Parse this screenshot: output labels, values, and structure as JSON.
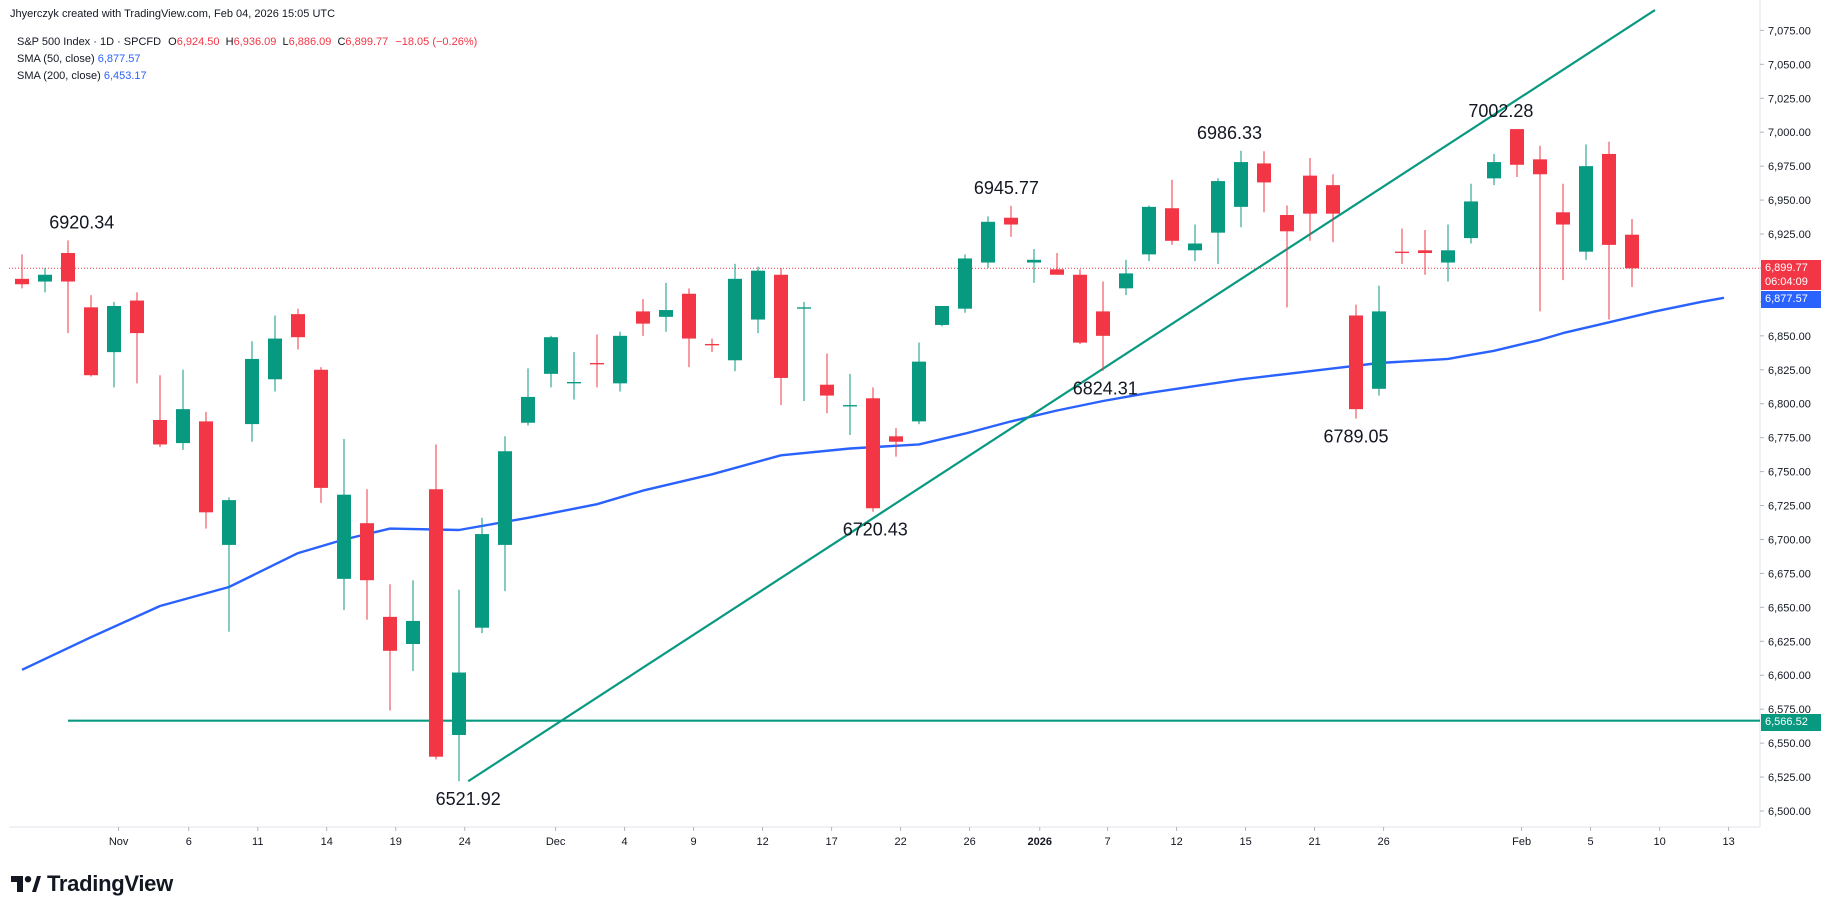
{
  "header": {
    "attribution": "Jhyerczyk created with TradingView.com, Feb 04, 2026 15:05 UTC"
  },
  "legend": {
    "symbol": "S&P 500 Index · 1D · SPCFD",
    "ohlc": [
      {
        "k": "O",
        "v": "6,924.50"
      },
      {
        "k": "H",
        "v": "6,936.09"
      },
      {
        "k": "L",
        "v": "6,886.09"
      },
      {
        "k": "C",
        "v": "6,899.77"
      }
    ],
    "change": "−18.05 (−0.26%)",
    "sma50_label": "SMA (50, close)",
    "sma50_value": "6,877.57",
    "sma200_label": "SMA (200, close)",
    "sma200_value": "6,453.17"
  },
  "price_tags": {
    "last_price": "6,899.77",
    "countdown": "06:04:09",
    "sma_value": "6,877.57",
    "support_level": "6,566.52"
  },
  "brand": {
    "name": "TradingView"
  },
  "colors": {
    "up": "#089981",
    "down": "#f23645",
    "sma": "#2962ff",
    "trendline": "#089981",
    "last_price_line": "#f23645"
  },
  "chart_data": {
    "type": "candlestick",
    "title": "S&P 500 Index · 1D · SPCFD",
    "y_axis": {
      "ylim": [
        6487.5,
        7087.5
      ],
      "ticks": [
        "6,500.00",
        "6,525.00",
        "6,550.00",
        "6,575.00",
        "6,600.00",
        "6,625.00",
        "6,650.00",
        "6,675.00",
        "6,700.00",
        "6,725.00",
        "6,750.00",
        "6,775.00",
        "6,800.00",
        "6,825.00",
        "6,850.00",
        "6,875.00",
        "6,900.00",
        "6,925.00",
        "6,950.00",
        "6,975.00",
        "7,000.00",
        "7,025.00",
        "7,050.00",
        "7,075.00"
      ],
      "position": "right"
    },
    "x_axis": {
      "ticks": [
        {
          "label": "Nov",
          "bar": 4.2,
          "bold": false
        },
        {
          "label": "6",
          "bar": 7.25,
          "bold": false
        },
        {
          "label": "11",
          "bar": 10.25,
          "bold": false
        },
        {
          "label": "14",
          "bar": 13.25,
          "bold": false
        },
        {
          "label": "19",
          "bar": 16.25,
          "bold": false
        },
        {
          "label": "24",
          "bar": 19.25,
          "bold": false
        },
        {
          "label": "Dec",
          "bar": 23.2,
          "bold": false
        },
        {
          "label": "4",
          "bar": 26.2,
          "bold": false
        },
        {
          "label": "9",
          "bar": 29.2,
          "bold": false
        },
        {
          "label": "12",
          "bar": 32.2,
          "bold": false
        },
        {
          "label": "17",
          "bar": 35.2,
          "bold": false
        },
        {
          "label": "22",
          "bar": 38.2,
          "bold": false
        },
        {
          "label": "26",
          "bar": 41.2,
          "bold": false
        },
        {
          "label": "2026",
          "bar": 44.25,
          "bold": true
        },
        {
          "label": "7",
          "bar": 47.2,
          "bold": false
        },
        {
          "label": "12",
          "bar": 50.2,
          "bold": false
        },
        {
          "label": "15",
          "bar": 53.2,
          "bold": false
        },
        {
          "label": "21",
          "bar": 56.2,
          "bold": false
        },
        {
          "label": "26",
          "bar": 59.2,
          "bold": false
        },
        {
          "label": "Feb",
          "bar": 65.2,
          "bold": false
        },
        {
          "label": "5",
          "bar": 68.2,
          "bold": false
        },
        {
          "label": "10",
          "bar": 71.2,
          "bold": false
        },
        {
          "label": "13",
          "bar": 74.2,
          "bold": false
        }
      ]
    },
    "candles": [
      {
        "o": 6892,
        "h": 6910,
        "l": 6885,
        "c": 6888
      },
      {
        "o": 6890,
        "h": 6900,
        "l": 6882,
        "c": 6895
      },
      {
        "o": 6911,
        "h": 6920.34,
        "l": 6852,
        "c": 6890
      },
      {
        "o": 6871,
        "h": 6880,
        "l": 6820,
        "c": 6821
      },
      {
        "o": 6838,
        "h": 6875,
        "l": 6812,
        "c": 6872
      },
      {
        "o": 6876,
        "h": 6882,
        "l": 6815,
        "c": 6852
      },
      {
        "o": 6788,
        "h": 6821,
        "l": 6768,
        "c": 6770
      },
      {
        "o": 6771,
        "h": 6825,
        "l": 6766,
        "c": 6796
      },
      {
        "o": 6787,
        "h": 6794,
        "l": 6708,
        "c": 6720
      },
      {
        "o": 6696,
        "h": 6731,
        "l": 6632,
        "c": 6729
      },
      {
        "o": 6785,
        "h": 6846,
        "l": 6772,
        "c": 6833
      },
      {
        "o": 6818,
        "h": 6865,
        "l": 6809,
        "c": 6848
      },
      {
        "o": 6866,
        "h": 6870,
        "l": 6840,
        "c": 6849
      },
      {
        "o": 6825,
        "h": 6827,
        "l": 6727,
        "c": 6738
      },
      {
        "o": 6671,
        "h": 6774,
        "l": 6648,
        "c": 6733
      },
      {
        "o": 6712,
        "h": 6737,
        "l": 6641,
        "c": 6670
      },
      {
        "o": 6643,
        "h": 6667,
        "l": 6574,
        "c": 6618
      },
      {
        "o": 6623,
        "h": 6670,
        "l": 6603,
        "c": 6640
      },
      {
        "o": 6737,
        "h": 6770,
        "l": 6538,
        "c": 6540
      },
      {
        "o": 6556,
        "h": 6663,
        "l": 6521.92,
        "c": 6602
      },
      {
        "o": 6635,
        "h": 6716,
        "l": 6631,
        "c": 6704
      },
      {
        "o": 6696,
        "h": 6776,
        "l": 6662,
        "c": 6765
      },
      {
        "o": 6786,
        "h": 6826,
        "l": 6784,
        "c": 6805
      },
      {
        "o": 6822,
        "h": 6850,
        "l": 6812,
        "c": 6849
      },
      {
        "o": 6815,
        "h": 6838,
        "l": 6803,
        "c": 6816
      },
      {
        "o": 6830,
        "h": 6851,
        "l": 6812,
        "c": 6829
      },
      {
        "o": 6815,
        "h": 6853,
        "l": 6809,
        "c": 6850
      },
      {
        "o": 6868,
        "h": 6877,
        "l": 6850,
        "c": 6859
      },
      {
        "o": 6864,
        "h": 6889,
        "l": 6853,
        "c": 6869
      },
      {
        "o": 6881,
        "h": 6885,
        "l": 6827,
        "c": 6848
      },
      {
        "o": 6844,
        "h": 6848,
        "l": 6838,
        "c": 6843
      },
      {
        "o": 6832,
        "h": 6903,
        "l": 6824,
        "c": 6892
      },
      {
        "o": 6862,
        "h": 6901,
        "l": 6852,
        "c": 6898
      },
      {
        "o": 6895,
        "h": 6900,
        "l": 6799,
        "c": 6819
      },
      {
        "o": 6870,
        "h": 6875,
        "l": 6802,
        "c": 6871
      },
      {
        "o": 6814,
        "h": 6837,
        "l": 6793,
        "c": 6806
      },
      {
        "o": 6798,
        "h": 6822,
        "l": 6777,
        "c": 6799
      },
      {
        "o": 6804,
        "h": 6812,
        "l": 6720.43,
        "c": 6723
      },
      {
        "o": 6776,
        "h": 6782,
        "l": 6761,
        "c": 6772
      },
      {
        "o": 6787,
        "h": 6845,
        "l": 6785,
        "c": 6831
      },
      {
        "o": 6858,
        "h": 6872,
        "l": 6857,
        "c": 6872
      },
      {
        "o": 6870,
        "h": 6910,
        "l": 6867,
        "c": 6907
      },
      {
        "o": 6904,
        "h": 6938,
        "l": 6900,
        "c": 6934
      },
      {
        "o": 6937,
        "h": 6945.77,
        "l": 6923,
        "c": 6932
      },
      {
        "o": 6904,
        "h": 6914,
        "l": 6889,
        "c": 6906
      },
      {
        "o": 6899,
        "h": 6911,
        "l": 6895,
        "c": 6895
      },
      {
        "o": 6895,
        "h": 6899,
        "l": 6844,
        "c": 6845
      },
      {
        "o": 6868,
        "h": 6890,
        "l": 6824.31,
        "c": 6850
      },
      {
        "o": 6885,
        "h": 6906,
        "l": 6880,
        "c": 6896
      },
      {
        "o": 6910,
        "h": 6946,
        "l": 6905,
        "c": 6945
      },
      {
        "o": 6944,
        "h": 6965,
        "l": 6917,
        "c": 6920
      },
      {
        "o": 6913,
        "h": 6932,
        "l": 6905,
        "c": 6918
      },
      {
        "o": 6926,
        "h": 6966,
        "l": 6903,
        "c": 6964
      },
      {
        "o": 6945,
        "h": 6986.33,
        "l": 6930,
        "c": 6978
      },
      {
        "o": 6977,
        "h": 6986,
        "l": 6941,
        "c": 6963
      },
      {
        "o": 6939,
        "h": 6946,
        "l": 6871,
        "c": 6927
      },
      {
        "o": 6968,
        "h": 6981,
        "l": 6920,
        "c": 6940
      },
      {
        "o": 6961,
        "h": 6969,
        "l": 6919,
        "c": 6940
      },
      {
        "o": 6865,
        "h": 6873,
        "l": 6789.05,
        "c": 6796
      },
      {
        "o": 6811,
        "h": 6887,
        "l": 6806,
        "c": 6868
      },
      {
        "o": 6912,
        "h": 6929,
        "l": 6903,
        "c": 6911
      },
      {
        "o": 6913,
        "h": 6928,
        "l": 6895,
        "c": 6911
      },
      {
        "o": 6904,
        "h": 6932,
        "l": 6890,
        "c": 6913
      },
      {
        "o": 6922,
        "h": 6962,
        "l": 6918,
        "c": 6949
      },
      {
        "o": 6966,
        "h": 6984,
        "l": 6961,
        "c": 6978
      },
      {
        "o": 7002.28,
        "h": 7002.28,
        "l": 6967,
        "c": 6976
      },
      {
        "o": 6980,
        "h": 6990,
        "l": 6868,
        "c": 6969
      },
      {
        "o": 6941,
        "h": 6962,
        "l": 6891,
        "c": 6932
      },
      {
        "o": 6912,
        "h": 6991,
        "l": 6906,
        "c": 6975
      },
      {
        "o": 6984,
        "h": 6993,
        "l": 6862,
        "c": 6917
      },
      {
        "o": 6924.5,
        "h": 6936.09,
        "l": 6886.09,
        "c": 6899.77
      }
    ],
    "sma50": [
      [
        0,
        6604
      ],
      [
        3,
        6628
      ],
      [
        6,
        6651
      ],
      [
        9,
        6665
      ],
      [
        12,
        6690
      ],
      [
        14,
        6700
      ],
      [
        16,
        6708
      ],
      [
        19,
        6707
      ],
      [
        22,
        6716
      ],
      [
        25,
        6726
      ],
      [
        27,
        6736
      ],
      [
        30,
        6748
      ],
      [
        33,
        6762
      ],
      [
        36,
        6767
      ],
      [
        39,
        6770
      ],
      [
        41,
        6778
      ],
      [
        43,
        6787
      ],
      [
        45,
        6795
      ],
      [
        47,
        6802
      ],
      [
        49,
        6808
      ],
      [
        51,
        6813
      ],
      [
        53,
        6818
      ],
      [
        55,
        6822
      ],
      [
        57,
        6826
      ],
      [
        59,
        6830
      ],
      [
        61,
        6832
      ],
      [
        62,
        6833
      ],
      [
        63,
        6836
      ],
      [
        64,
        6839
      ],
      [
        65,
        6843
      ],
      [
        66,
        6847
      ],
      [
        67,
        6852
      ],
      [
        69,
        6860
      ],
      [
        71,
        6868
      ],
      [
        73,
        6875
      ],
      [
        74,
        6878
      ]
    ],
    "trendlines": [
      {
        "from": {
          "bar": 19.4,
          "price": 6521.92
        },
        "to": {
          "bar": 71.0,
          "price": 7090
        }
      }
    ],
    "hlines": [
      {
        "from_bar": 2.0,
        "price": 6566.52
      }
    ],
    "annotations": [
      {
        "text": "6920.34",
        "bar": 2.6,
        "price": 6920.34,
        "place": "above"
      },
      {
        "text": "6521.92",
        "bar": 19.4,
        "price": 6521.92,
        "place": "below"
      },
      {
        "text": "6945.77",
        "bar": 42.8,
        "price": 6945.77,
        "place": "above"
      },
      {
        "text": "6720.43",
        "bar": 37.1,
        "price": 6720.43,
        "place": "below"
      },
      {
        "text": "6824.31",
        "bar": 47.1,
        "price": 6824.31,
        "place": "below"
      },
      {
        "text": "6986.33",
        "bar": 52.5,
        "price": 6986.33,
        "place": "above"
      },
      {
        "text": "6789.05",
        "bar": 58.0,
        "price": 6789.05,
        "place": "below"
      },
      {
        "text": "7002.28",
        "bar": 64.3,
        "price": 7002.28,
        "place": "above"
      }
    ],
    "last_price": 6899.77,
    "grid": false,
    "legend_position": "top-left"
  }
}
